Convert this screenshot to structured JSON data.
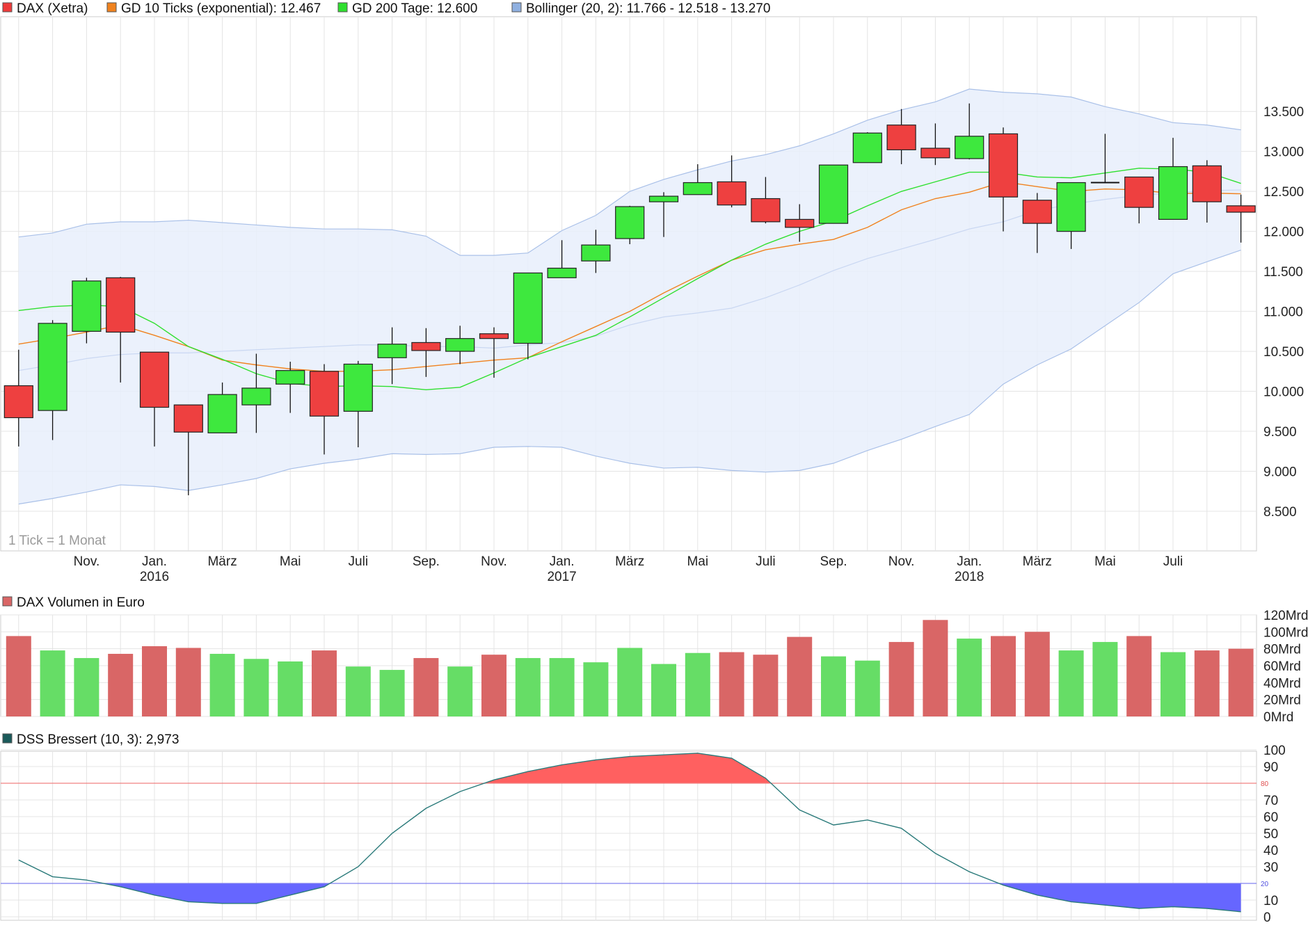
{
  "legend_main": [
    {
      "label": "DAX (Xetra)",
      "color": "#ee3b3b"
    },
    {
      "label": "GD 10 Ticks (exponential): 12.467",
      "color": "#f0821e"
    },
    {
      "label": "GD 200 Tage: 12.600",
      "color": "#2fe02f"
    },
    {
      "label": "Bollinger (20, 2): 11.766 - 12.518 - 13.270",
      "color": "#8fb0e0"
    }
  ],
  "tick_note": "1 Tick = 1 Monat",
  "legend_volume": {
    "label": "DAX Volumen in Euro",
    "color": "#d96666"
  },
  "legend_dss": {
    "label": "DSS Bressert (10, 3): 2,973",
    "color": "#1a5a5a"
  },
  "colors": {
    "up": "#3ee83e",
    "down": "#ee4040",
    "vol_up": "#66dd66",
    "vol_down": "#d96666",
    "ema": "#f0821e",
    "sma200": "#2fe02f",
    "boll_fill": "#e8effc",
    "boll_line": "#a9c0e8",
    "dss_line": "#2a7a7a",
    "dss_hi_fill": "#ff6060",
    "dss_lo_fill": "#6666ff"
  },
  "chart_data": [
    {
      "type": "candlestick",
      "title": "DAX (Xetra)",
      "y_ticks": [
        "13.500",
        "13.000",
        "12.500",
        "12.000",
        "11.500",
        "11.000",
        "10.500",
        "10.000",
        "9.500",
        "9.000",
        "8.500"
      ],
      "y_tick_values": [
        13500,
        13000,
        12500,
        12000,
        11500,
        11000,
        10500,
        10000,
        9500,
        9000,
        8500
      ],
      "x_labels": [
        {
          "month": 2,
          "line1": "Nov.",
          "line2": ""
        },
        {
          "month": 4,
          "line1": "Jan.",
          "line2": "2016"
        },
        {
          "month": 6,
          "line1": "März",
          "line2": ""
        },
        {
          "month": 8,
          "line1": "Mai",
          "line2": ""
        },
        {
          "month": 10,
          "line1": "Juli",
          "line2": ""
        },
        {
          "month": 12,
          "line1": "Sep.",
          "line2": ""
        },
        {
          "month": 14,
          "line1": "Nov.",
          "line2": ""
        },
        {
          "month": 16,
          "line1": "Jan.",
          "line2": "2017"
        },
        {
          "month": 18,
          "line1": "März",
          "line2": ""
        },
        {
          "month": 20,
          "line1": "Mai",
          "line2": ""
        },
        {
          "month": 22,
          "line1": "Juli",
          "line2": ""
        },
        {
          "month": 24,
          "line1": "Sep.",
          "line2": ""
        },
        {
          "month": 26,
          "line1": "Nov.",
          "line2": ""
        },
        {
          "month": 28,
          "line1": "Jan.",
          "line2": "2018"
        },
        {
          "month": 30,
          "line1": "März",
          "line2": ""
        },
        {
          "month": 32,
          "line1": "Mai",
          "line2": ""
        },
        {
          "month": 34,
          "line1": "Juli",
          "line2": ""
        }
      ],
      "candles": [
        {
          "o": 10070,
          "h": 10520,
          "l": 9310,
          "c": 9670
        },
        {
          "o": 9760,
          "h": 10890,
          "l": 9390,
          "c": 10850
        },
        {
          "o": 10750,
          "h": 11420,
          "l": 10600,
          "c": 11380
        },
        {
          "o": 11420,
          "h": 11430,
          "l": 10110,
          "c": 10740
        },
        {
          "o": 10490,
          "h": 10490,
          "l": 9310,
          "c": 9800
        },
        {
          "o": 9830,
          "h": 9830,
          "l": 8700,
          "c": 9490
        },
        {
          "o": 9480,
          "h": 10110,
          "l": 9480,
          "c": 9960
        },
        {
          "o": 9830,
          "h": 10470,
          "l": 9480,
          "c": 10040
        },
        {
          "o": 10090,
          "h": 10370,
          "l": 9730,
          "c": 10260
        },
        {
          "o": 10250,
          "h": 10340,
          "l": 9210,
          "c": 9690
        },
        {
          "o": 9750,
          "h": 10380,
          "l": 9300,
          "c": 10340
        },
        {
          "o": 10420,
          "h": 10800,
          "l": 10090,
          "c": 10590
        },
        {
          "o": 10610,
          "h": 10790,
          "l": 10180,
          "c": 10510
        },
        {
          "o": 10500,
          "h": 10820,
          "l": 10340,
          "c": 10660
        },
        {
          "o": 10720,
          "h": 10800,
          "l": 10170,
          "c": 10660
        },
        {
          "o": 10600,
          "h": 11480,
          "l": 10400,
          "c": 11480
        },
        {
          "o": 11420,
          "h": 11890,
          "l": 11420,
          "c": 11540
        },
        {
          "o": 11630,
          "h": 12020,
          "l": 11480,
          "c": 11830
        },
        {
          "o": 11910,
          "h": 12320,
          "l": 11840,
          "c": 12310
        },
        {
          "o": 12370,
          "h": 12490,
          "l": 11930,
          "c": 12440
        },
        {
          "o": 12460,
          "h": 12840,
          "l": 12460,
          "c": 12610
        },
        {
          "o": 12620,
          "h": 12950,
          "l": 12300,
          "c": 12330
        },
        {
          "o": 12410,
          "h": 12680,
          "l": 12100,
          "c": 12120
        },
        {
          "o": 12150,
          "h": 12340,
          "l": 11870,
          "c": 12050
        },
        {
          "o": 12100,
          "h": 12830,
          "l": 12100,
          "c": 12830
        },
        {
          "o": 12860,
          "h": 13240,
          "l": 12860,
          "c": 13230
        },
        {
          "o": 13330,
          "h": 13530,
          "l": 12840,
          "c": 13020
        },
        {
          "o": 13040,
          "h": 13350,
          "l": 12830,
          "c": 12920
        },
        {
          "o": 12910,
          "h": 13600,
          "l": 12900,
          "c": 13190
        },
        {
          "o": 13220,
          "h": 13300,
          "l": 12000,
          "c": 12430
        },
        {
          "o": 12390,
          "h": 12480,
          "l": 11730,
          "c": 12100
        },
        {
          "o": 12000,
          "h": 12610,
          "l": 11780,
          "c": 12610
        },
        {
          "o": 12610,
          "h": 13220,
          "l": 12610,
          "c": 12610
        },
        {
          "o": 12680,
          "h": 12680,
          "l": 12100,
          "c": 12300
        },
        {
          "o": 12150,
          "h": 13170,
          "l": 12150,
          "c": 12810
        },
        {
          "o": 12820,
          "h": 12890,
          "l": 12110,
          "c": 12370
        },
        {
          "o": 12320,
          "h": 12460,
          "l": 11860,
          "c": 12240
        }
      ],
      "ema10": [
        10590,
        10660,
        10740,
        10830,
        10700,
        10560,
        10390,
        10330,
        10280,
        10250,
        10250,
        10270,
        10310,
        10350,
        10390,
        10420,
        10620,
        10810,
        11000,
        11230,
        11440,
        11640,
        11770,
        11840,
        11900,
        12050,
        12270,
        12410,
        12490,
        12620,
        12560,
        12500,
        12530,
        12520,
        12470,
        12480,
        12470
      ],
      "sma200": [
        11010,
        11060,
        11080,
        11060,
        10850,
        10560,
        10400,
        10220,
        10100,
        10060,
        10070,
        10060,
        10020,
        10050,
        10230,
        10420,
        10560,
        10700,
        10930,
        11170,
        11410,
        11640,
        11840,
        12000,
        12130,
        12320,
        12500,
        12620,
        12740,
        12740,
        12680,
        12670,
        12730,
        12790,
        12780,
        12740,
        12600
      ],
      "boll_upper": [
        11930,
        11980,
        12090,
        12120,
        12120,
        12140,
        12110,
        12080,
        12050,
        12030,
        12030,
        12020,
        11940,
        11700,
        11700,
        11730,
        12010,
        12200,
        12500,
        12650,
        12770,
        12880,
        12960,
        13070,
        13220,
        13390,
        13520,
        13620,
        13780,
        13740,
        13720,
        13680,
        13560,
        13470,
        13360,
        13330,
        13270
      ],
      "boll_mid": [
        10260,
        10330,
        10410,
        10460,
        10480,
        10480,
        10500,
        10520,
        10540,
        10560,
        10580,
        10580,
        10560,
        10560,
        10540,
        10580,
        10610,
        10690,
        10830,
        10930,
        10980,
        11040,
        11170,
        11330,
        11510,
        11660,
        11780,
        11900,
        12030,
        12120,
        12260,
        12340,
        12400,
        12450,
        12480,
        12510,
        12518
      ],
      "boll_lower": [
        8590,
        8660,
        8740,
        8830,
        8810,
        8760,
        8830,
        8910,
        9030,
        9100,
        9150,
        9220,
        9210,
        9220,
        9300,
        9310,
        9300,
        9190,
        9100,
        9040,
        9050,
        9010,
        8990,
        9010,
        9100,
        9260,
        9400,
        9560,
        9710,
        10090,
        10330,
        10530,
        10820,
        11110,
        11470,
        11620,
        11766
      ]
    },
    {
      "type": "bar",
      "title": "DAX Volumen in Euro",
      "y_ticks": [
        "120Mrd",
        "100Mrd",
        "80Mrd",
        "60Mrd",
        "40Mrd",
        "20Mrd",
        "0Mrd"
      ],
      "y_tick_values": [
        120,
        100,
        80,
        60,
        40,
        20,
        0
      ],
      "unit": "Mrd",
      "values": [
        95,
        78,
        69,
        74,
        83,
        81,
        74,
        68,
        65,
        78,
        59,
        55,
        69,
        59,
        73,
        69,
        69,
        64,
        81,
        62,
        75,
        76,
        73,
        94,
        71,
        66,
        88,
        114,
        92,
        95,
        100,
        78,
        88,
        95,
        76,
        78,
        80
      ]
    },
    {
      "type": "line",
      "title": "DSS Bressert (10, 3): 2,973",
      "y_ticks": [
        "100",
        "90",
        "80",
        "70",
        "60",
        "50",
        "40",
        "30",
        "20",
        "10",
        "0"
      ],
      "y_tick_values": [
        100,
        90,
        80,
        70,
        60,
        50,
        40,
        30,
        20,
        10,
        0
      ],
      "overbought": 80,
      "oversold": 20,
      "overbought_label": "80",
      "oversold_label": "20",
      "values": [
        34,
        24,
        22,
        18,
        13,
        9,
        8,
        8,
        13,
        18,
        30,
        50,
        65,
        75,
        82,
        87,
        91,
        94,
        96,
        97,
        98,
        95,
        83,
        64,
        55,
        58,
        53,
        38,
        27,
        19,
        13,
        9,
        7,
        5,
        6,
        5,
        3
      ]
    }
  ]
}
